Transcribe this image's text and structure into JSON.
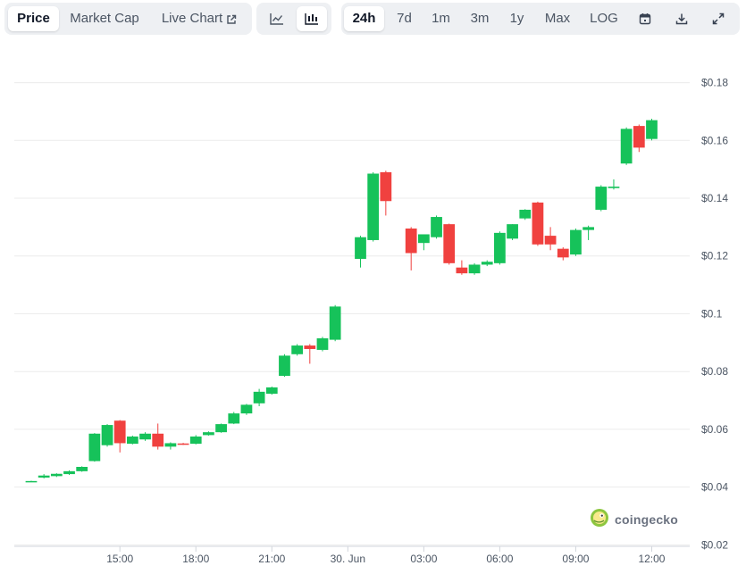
{
  "toolbar": {
    "metric_tabs": [
      {
        "label": "Price",
        "active": true
      },
      {
        "label": "Market Cap",
        "active": false
      },
      {
        "label": "Live Chart",
        "active": false
      }
    ],
    "chart_types": [
      {
        "icon": "line-chart-icon",
        "active": false
      },
      {
        "icon": "candlestick-chart-icon",
        "active": true
      }
    ],
    "ranges": [
      {
        "label": "24h",
        "active": true
      },
      {
        "label": "7d",
        "active": false
      },
      {
        "label": "1m",
        "active": false
      },
      {
        "label": "3m",
        "active": false
      },
      {
        "label": "1y",
        "active": false
      },
      {
        "label": "Max",
        "active": false
      },
      {
        "label": "LOG",
        "active": false
      }
    ],
    "actions": [
      "calendar-icon",
      "download-icon",
      "expand-icon"
    ]
  },
  "brand": {
    "name": "coingecko"
  },
  "colors": {
    "up": "#16c25a",
    "down": "#f0413f",
    "grid": "#ececec",
    "brand": "#8dc63f"
  },
  "chart_data": {
    "type": "candlestick",
    "y_ticks": [
      "$0.02",
      "$0.04",
      "$0.06",
      "$0.08",
      "$0.1",
      "$0.12",
      "$0.14",
      "$0.16",
      "$0.18"
    ],
    "y_tick_values": [
      0.02,
      0.04,
      0.06,
      0.08,
      0.1,
      0.12,
      0.14,
      0.16,
      0.18
    ],
    "ylim": [
      0.0195,
      0.1845
    ],
    "x_ticks": [
      "15:00",
      "18:00",
      "21:00",
      "30. Jun",
      "03:00",
      "06:00",
      "09:00",
      "12:00"
    ],
    "x_tick_hours": [
      3,
      6,
      9,
      12,
      15,
      18,
      21,
      24
    ],
    "x_range_hours": [
      -1.17,
      25.5
    ],
    "interval_hours": 0.5,
    "candles": [
      {
        "t": -0.5,
        "o": 0.042,
        "h": 0.0422,
        "l": 0.0418,
        "c": 0.0421
      },
      {
        "t": 0.0,
        "o": 0.0433,
        "h": 0.0445,
        "l": 0.043,
        "c": 0.044
      },
      {
        "t": 0.5,
        "o": 0.0438,
        "h": 0.0448,
        "l": 0.0435,
        "c": 0.0446
      },
      {
        "t": 1.0,
        "o": 0.0445,
        "h": 0.0458,
        "l": 0.0442,
        "c": 0.0455
      },
      {
        "t": 1.5,
        "o": 0.0455,
        "h": 0.0472,
        "l": 0.0453,
        "c": 0.047
      },
      {
        "t": 2.0,
        "o": 0.049,
        "h": 0.0587,
        "l": 0.0488,
        "c": 0.0585
      },
      {
        "t": 2.5,
        "o": 0.0545,
        "h": 0.0618,
        "l": 0.054,
        "c": 0.0615
      },
      {
        "t": 3.0,
        "o": 0.063,
        "h": 0.0632,
        "l": 0.052,
        "c": 0.0552
      },
      {
        "t": 3.5,
        "o": 0.055,
        "h": 0.0578,
        "l": 0.0548,
        "c": 0.0575
      },
      {
        "t": 4.0,
        "o": 0.0565,
        "h": 0.059,
        "l": 0.056,
        "c": 0.0585
      },
      {
        "t": 4.5,
        "o": 0.0585,
        "h": 0.062,
        "l": 0.053,
        "c": 0.054
      },
      {
        "t": 5.0,
        "o": 0.054,
        "h": 0.0555,
        "l": 0.053,
        "c": 0.0552
      },
      {
        "t": 5.5,
        "o": 0.0551,
        "h": 0.0553,
        "l": 0.0546,
        "c": 0.0548
      },
      {
        "t": 6.0,
        "o": 0.055,
        "h": 0.058,
        "l": 0.0548,
        "c": 0.0575
      },
      {
        "t": 6.5,
        "o": 0.058,
        "h": 0.0593,
        "l": 0.0578,
        "c": 0.059
      },
      {
        "t": 7.0,
        "o": 0.059,
        "h": 0.062,
        "l": 0.0588,
        "c": 0.0618
      },
      {
        "t": 7.5,
        "o": 0.062,
        "h": 0.066,
        "l": 0.0618,
        "c": 0.0655
      },
      {
        "t": 8.0,
        "o": 0.0655,
        "h": 0.0688,
        "l": 0.065,
        "c": 0.0685
      },
      {
        "t": 8.5,
        "o": 0.069,
        "h": 0.074,
        "l": 0.068,
        "c": 0.073
      },
      {
        "t": 9.0,
        "o": 0.0723,
        "h": 0.0748,
        "l": 0.072,
        "c": 0.0745
      },
      {
        "t": 9.5,
        "o": 0.0785,
        "h": 0.086,
        "l": 0.0782,
        "c": 0.0855
      },
      {
        "t": 10.0,
        "o": 0.086,
        "h": 0.0895,
        "l": 0.0855,
        "c": 0.089
      },
      {
        "t": 10.5,
        "o": 0.089,
        "h": 0.0895,
        "l": 0.0827,
        "c": 0.0878
      },
      {
        "t": 11.0,
        "o": 0.0875,
        "h": 0.092,
        "l": 0.087,
        "c": 0.0915
      },
      {
        "t": 11.5,
        "o": 0.091,
        "h": 0.103,
        "l": 0.0905,
        "c": 0.1025
      },
      {
        "t": 12.5,
        "o": 0.119,
        "h": 0.127,
        "l": 0.116,
        "c": 0.1265
      },
      {
        "t": 13.0,
        "o": 0.1255,
        "h": 0.149,
        "l": 0.125,
        "c": 0.1485
      },
      {
        "t": 13.5,
        "o": 0.149,
        "h": 0.1495,
        "l": 0.134,
        "c": 0.139
      },
      {
        "t": 14.5,
        "o": 0.1295,
        "h": 0.13,
        "l": 0.115,
        "c": 0.121
      },
      {
        "t": 15.0,
        "o": 0.1245,
        "h": 0.127,
        "l": 0.122,
        "c": 0.1275
      },
      {
        "t": 15.5,
        "o": 0.1265,
        "h": 0.134,
        "l": 0.126,
        "c": 0.1335
      },
      {
        "t": 16.0,
        "o": 0.131,
        "h": 0.1312,
        "l": 0.117,
        "c": 0.1175
      },
      {
        "t": 16.5,
        "o": 0.116,
        "h": 0.1185,
        "l": 0.1135,
        "c": 0.114
      },
      {
        "t": 17.0,
        "o": 0.114,
        "h": 0.1175,
        "l": 0.1135,
        "c": 0.117
      },
      {
        "t": 17.5,
        "o": 0.117,
        "h": 0.1185,
        "l": 0.1165,
        "c": 0.118
      },
      {
        "t": 18.0,
        "o": 0.1175,
        "h": 0.1285,
        "l": 0.117,
        "c": 0.128
      },
      {
        "t": 18.5,
        "o": 0.126,
        "h": 0.131,
        "l": 0.1255,
        "c": 0.131
      },
      {
        "t": 19.0,
        "o": 0.133,
        "h": 0.1362,
        "l": 0.1325,
        "c": 0.136
      },
      {
        "t": 19.5,
        "o": 0.1385,
        "h": 0.1388,
        "l": 0.1235,
        "c": 0.124
      },
      {
        "t": 20.0,
        "o": 0.127,
        "h": 0.13,
        "l": 0.122,
        "c": 0.124
      },
      {
        "t": 20.5,
        "o": 0.1225,
        "h": 0.123,
        "l": 0.1185,
        "c": 0.1195
      },
      {
        "t": 21.0,
        "o": 0.1205,
        "h": 0.1295,
        "l": 0.12,
        "c": 0.129
      },
      {
        "t": 21.5,
        "o": 0.129,
        "h": 0.1305,
        "l": 0.1255,
        "c": 0.13
      },
      {
        "t": 22.0,
        "o": 0.136,
        "h": 0.1445,
        "l": 0.1355,
        "c": 0.144
      },
      {
        "t": 22.5,
        "o": 0.1435,
        "h": 0.1465,
        "l": 0.143,
        "c": 0.144
      },
      {
        "t": 23.0,
        "o": 0.152,
        "h": 0.1645,
        "l": 0.1515,
        "c": 0.164
      },
      {
        "t": 23.5,
        "o": 0.165,
        "h": 0.1655,
        "l": 0.156,
        "c": 0.1575
      },
      {
        "t": 24.0,
        "o": 0.1605,
        "h": 0.1675,
        "l": 0.16,
        "c": 0.167
      }
    ]
  }
}
